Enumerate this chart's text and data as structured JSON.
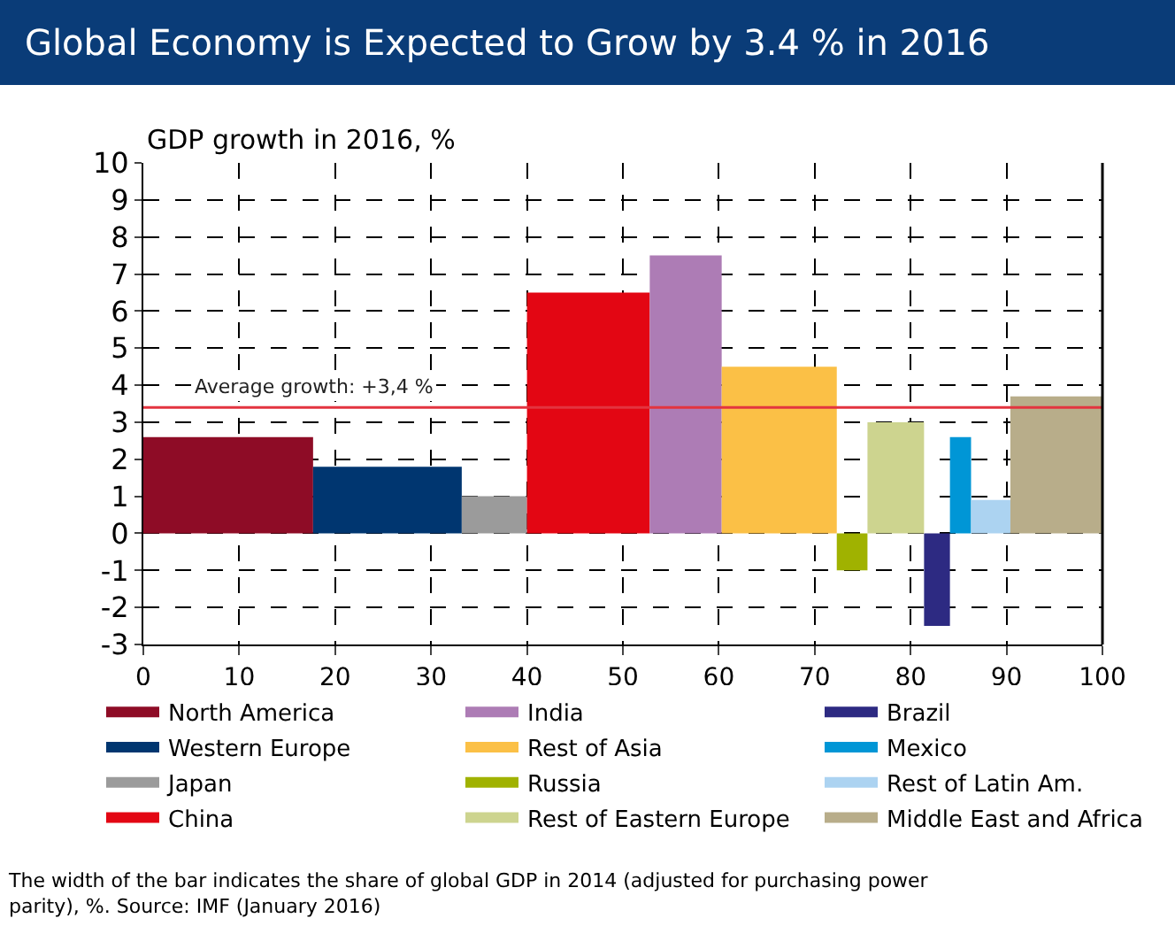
{
  "chart_data": {
    "type": "area",
    "title": "Global Economy is Expected to Grow by 3.4 % in 2016",
    "ylabel": "GDP growth in 2016, %",
    "xlim": [
      0,
      100
    ],
    "xticks": [
      0,
      10,
      20,
      30,
      40,
      50,
      60,
      70,
      80,
      90,
      100
    ],
    "ylim": [
      -3,
      10
    ],
    "yticks": [
      -3,
      -2,
      -1,
      0,
      1,
      2,
      3,
      4,
      5,
      6,
      7,
      8,
      9,
      10
    ],
    "grid": true,
    "legend": "bottom",
    "series": [
      {
        "name": "North America",
        "color": "#8e0c26",
        "x": [
          0,
          17.7
        ],
        "values": [
          2.6,
          2.6
        ]
      },
      {
        "name": "Western Europe",
        "color": "#003670",
        "x": [
          17.7,
          33.2
        ],
        "values": [
          1.8,
          1.8
        ]
      },
      {
        "name": "Japan",
        "color": "#9b9b9b",
        "x": [
          33.2,
          40
        ],
        "values": [
          1.0,
          1.0
        ]
      },
      {
        "name": "China",
        "color": "#e30613",
        "x": [
          40,
          52.8
        ],
        "values": [
          6.5,
          6.5
        ]
      },
      {
        "name": "India",
        "color": "#ad7cb5",
        "x": [
          52.8,
          60.3
        ],
        "values": [
          7.5,
          7.5
        ]
      },
      {
        "name": "Rest of Asia",
        "color": "#fbc046",
        "x": [
          60.3,
          72.3
        ],
        "values": [
          4.5,
          4.5
        ]
      },
      {
        "name": "Russia",
        "color": "#a0b200",
        "x": [
          72.3,
          75.5
        ],
        "values": [
          -1.0,
          -1.0
        ]
      },
      {
        "name": "Rest of Eastern Europe",
        "color": "#cdd48f",
        "x": [
          75.5,
          81.4
        ],
        "values": [
          3.0,
          3.0
        ]
      },
      {
        "name": "Brazil",
        "color": "#2d2a82",
        "x": [
          81.4,
          84.1
        ],
        "values": [
          -2.5,
          -2.5
        ]
      },
      {
        "name": "Mexico",
        "color": "#0096d6",
        "x": [
          84.1,
          86.3
        ],
        "values": [
          2.6,
          2.6
        ]
      },
      {
        "name": "Rest of Latin Am.",
        "color": "#acd3f1",
        "x": [
          86.3,
          90.4
        ],
        "values": [
          0.9,
          0.9
        ]
      },
      {
        "name": "Middle East and Africa",
        "color": "#b8ad8a",
        "x": [
          90.4,
          100
        ],
        "values": [
          3.7,
          3.7
        ]
      }
    ],
    "ref_lines": [
      {
        "axis": "y",
        "value": 3.4,
        "label": "Average growth: +3,4 %",
        "color": "#e3343f"
      }
    ],
    "annotations": [
      "The width of the bar indicates the share of global GDP in 2014 (adjusted for purchasing power parity), %. Source: IMF (January 2016)"
    ]
  }
}
